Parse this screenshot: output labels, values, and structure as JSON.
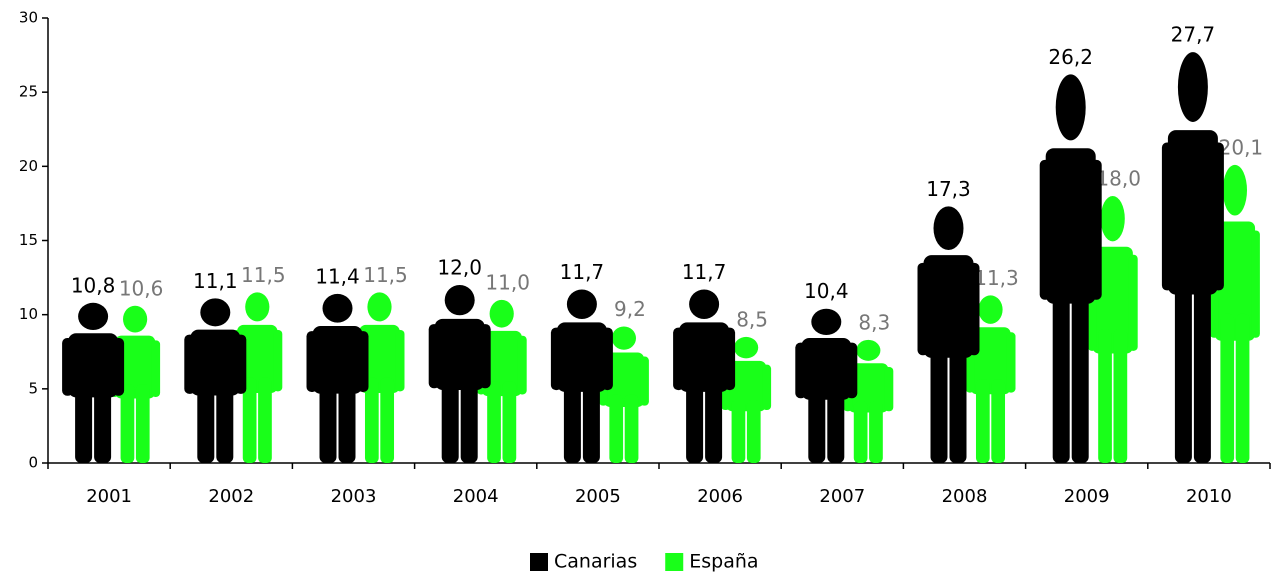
{
  "chart_data": {
    "type": "pictograph",
    "categories": [
      "2001",
      "2002",
      "2003",
      "2004",
      "2005",
      "2006",
      "2007",
      "2008",
      "2009",
      "2010"
    ],
    "series": [
      {
        "name": "Canarias",
        "color": "#000000",
        "label_color": "#000000",
        "values": [
          10.8,
          11.1,
          11.4,
          12.0,
          11.7,
          11.7,
          10.4,
          17.3,
          26.2,
          27.7
        ],
        "value_labels": [
          "10,8",
          "11,1",
          "11,4",
          "12,0",
          "11,7",
          "11,7",
          "10,4",
          "17,3",
          "26,2",
          "27,7"
        ]
      },
      {
        "name": "España",
        "color": "#19ff19",
        "label_color": "#777777",
        "values": [
          10.6,
          11.5,
          11.5,
          11.0,
          9.2,
          8.5,
          8.3,
          11.3,
          18.0,
          20.1
        ],
        "value_labels": [
          "10,6",
          "11,5",
          "11,5",
          "11,0",
          "9,2",
          "8,5",
          "8,3",
          "11,3",
          "18,0",
          "20,1"
        ]
      }
    ],
    "ylim": [
      0,
      30
    ],
    "yticks": [
      0,
      5,
      10,
      15,
      20,
      25,
      30
    ],
    "legend": "bottom"
  }
}
